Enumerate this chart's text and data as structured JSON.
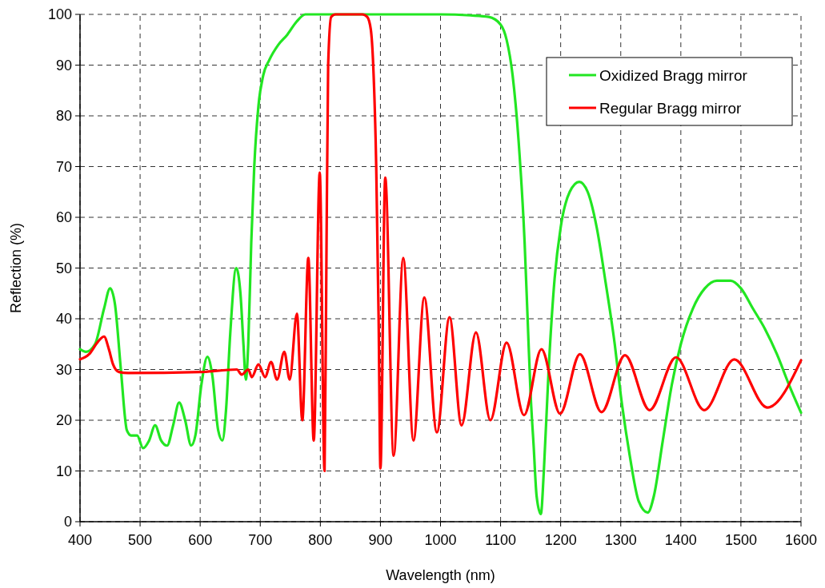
{
  "chart_data": {
    "type": "line",
    "xlabel": "Wavelength (nm)",
    "ylabel": "Reflection (%)",
    "xlim": [
      400,
      1600
    ],
    "xticks": [
      400,
      500,
      600,
      700,
      800,
      900,
      1000,
      1100,
      1200,
      1300,
      1400,
      1500,
      1600
    ],
    "ylim": [
      0,
      100
    ],
    "yticks": [
      0,
      10,
      20,
      30,
      40,
      50,
      60,
      70,
      80,
      90,
      100
    ],
    "grid": true,
    "legend": "top right",
    "series": [
      {
        "name": "Oxidized Bragg mirror",
        "color": "#22e622",
        "x": [
          400,
          410,
          425,
          440,
          450,
          458,
          468,
          478,
          485,
          495,
          505,
          515,
          525,
          535,
          545,
          555,
          565,
          575,
          585,
          592,
          602,
          612,
          620,
          630,
          637,
          643,
          650,
          660,
          667,
          672,
          676,
          680,
          685,
          690,
          697,
          705,
          715,
          730,
          745,
          760,
          775,
          800,
          900,
          1000,
          1050,
          1080,
          1100,
          1110,
          1120,
          1130,
          1140,
          1145,
          1150,
          1155,
          1160,
          1167,
          1172,
          1180,
          1190,
          1200,
          1215,
          1231,
          1245,
          1260,
          1275,
          1290,
          1300,
          1315,
          1330,
          1345,
          1355,
          1370,
          1385,
          1400,
          1420,
          1440,
          1460,
          1483,
          1500,
          1520,
          1540,
          1560,
          1580,
          1600
        ],
        "values": [
          34,
          33.5,
          35,
          42,
          46,
          43,
          30,
          18,
          17,
          17,
          14.5,
          16,
          19,
          16,
          15,
          19,
          23.5,
          20,
          15,
          17,
          27,
          32.5,
          29,
          18,
          16,
          22,
          37,
          50,
          45,
          35,
          28,
          35,
          55,
          70,
          82,
          88,
          91,
          94,
          96,
          98.5,
          100,
          100,
          100,
          100,
          99.8,
          99.5,
          98,
          95,
          88,
          75,
          55,
          40,
          25,
          15,
          5,
          1.5,
          10,
          30,
          48,
          58,
          65,
          67,
          65,
          58,
          47,
          35,
          25,
          13,
          4,
          1.8,
          5,
          16,
          27,
          35,
          42,
          46,
          47.5,
          47.5,
          46,
          42,
          38,
          33,
          27,
          21.5
        ]
      },
      {
        "name": "Regular Bragg mirror",
        "color": "#ff0000",
        "x": [
          400,
          415,
          430,
          440,
          448,
          455,
          465,
          480,
          600,
          661,
          669,
          680,
          686,
          697,
          708,
          718,
          728,
          740,
          749,
          761,
          770,
          780,
          789,
          799,
          807,
          810,
          813,
          818,
          825,
          870,
          878,
          884,
          888,
          893,
          897,
          900,
          908,
          922,
          938,
          955,
          973,
          994,
          1015,
          1035,
          1059,
          1083,
          1110,
          1139,
          1168,
          1199,
          1232,
          1268,
          1307,
          1348,
          1392,
          1439,
          1489,
          1544,
          1600
        ],
        "values": [
          32,
          33,
          35.5,
          36.5,
          34,
          31,
          29.5,
          29.3,
          29.5,
          30,
          29,
          30,
          28.5,
          31,
          28.5,
          31.5,
          28,
          33.5,
          28,
          41,
          20,
          52,
          16,
          68.8,
          10,
          50,
          90,
          99.5,
          100,
          100,
          99.5,
          97,
          90,
          70,
          40,
          10.5,
          67.8,
          13,
          52,
          16,
          44.2,
          17.6,
          40.3,
          19,
          37.3,
          20,
          35.3,
          21,
          34,
          21.3,
          33,
          21.6,
          32.8,
          22,
          32.4,
          22,
          32,
          22.5,
          31.8
        ]
      }
    ]
  }
}
